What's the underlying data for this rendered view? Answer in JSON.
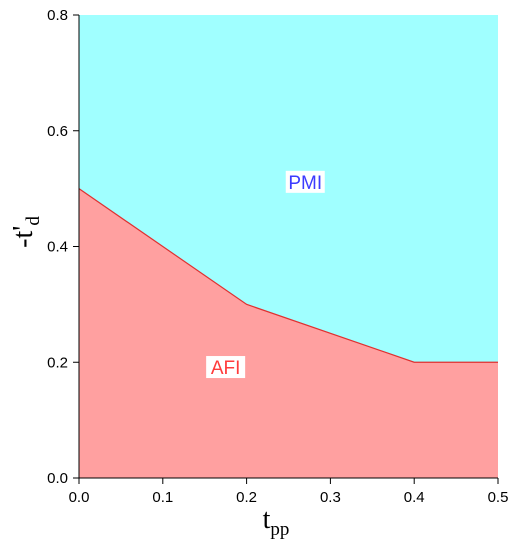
{
  "chart_data": {
    "type": "area",
    "x": [
      0.0,
      0.2,
      0.4,
      0.5
    ],
    "boundary": [
      0.5,
      0.3,
      0.2,
      0.2
    ],
    "xlim": [
      0.0,
      0.5
    ],
    "ylim": [
      0.0,
      0.8
    ],
    "xticks": [
      "0.0",
      "0.1",
      "0.2",
      "0.3",
      "0.4",
      "0.5"
    ],
    "yticks": [
      "0.0",
      "0.2",
      "0.4",
      "0.6",
      "0.8"
    ],
    "xlabel": {
      "main": "t",
      "sub": "pp"
    },
    "ylabel": {
      "main": "-t'",
      "sub": "d"
    },
    "regions": [
      {
        "name": "AFI",
        "label_at": [
          0.175,
          0.19
        ],
        "fill": "#ffa0a0",
        "label_color": "#ff3b3b"
      },
      {
        "name": "PMI",
        "label_at": [
          0.27,
          0.51
        ],
        "fill": "#a0ffff",
        "label_color": "#3b3bff"
      }
    ],
    "boundary_color": "#e03030",
    "grid": false
  }
}
